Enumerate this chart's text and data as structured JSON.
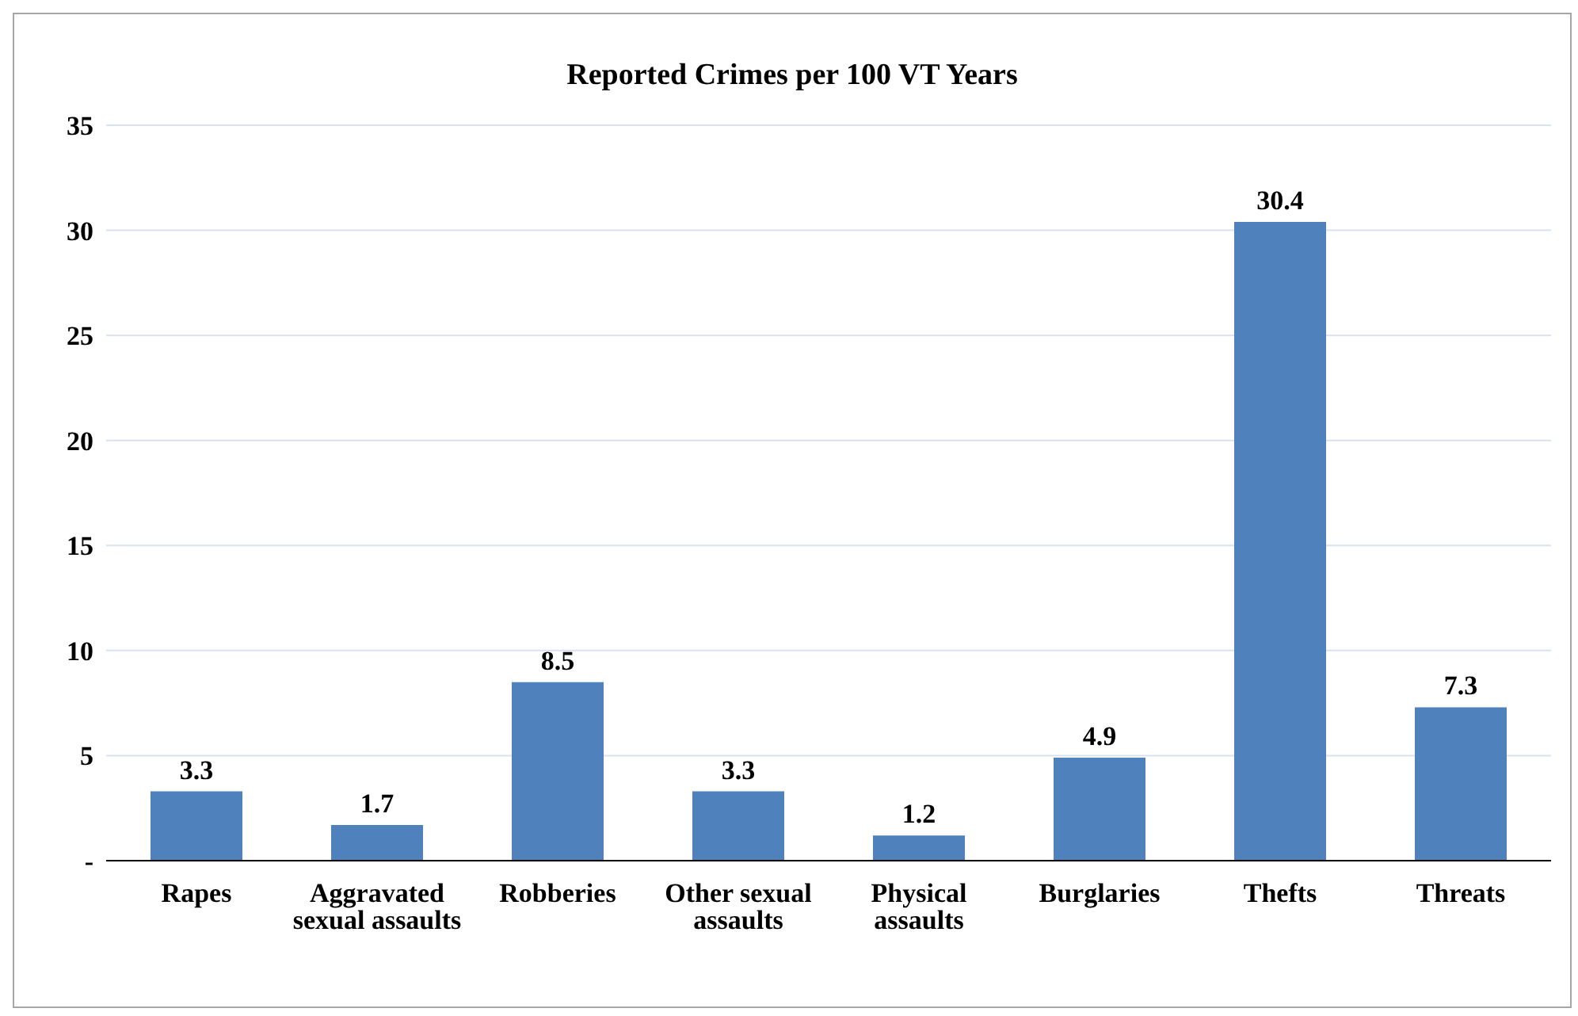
{
  "chart_data": {
    "type": "bar",
    "title": "Reported Crimes  per 100 VT Years",
    "categories": [
      "Rapes",
      "Aggravated sexual assaults",
      "Robberies",
      "Other sexual assaults",
      "Physical assaults",
      "Burglaries",
      "Thefts",
      "Threats"
    ],
    "values": [
      3.3,
      1.7,
      8.5,
      3.3,
      1.2,
      4.9,
      30.4,
      7.3
    ],
    "color": "#4f81bd",
    "ylim": [
      0,
      35
    ],
    "yticks": [
      {
        "value": 0,
        "label": "-"
      },
      5,
      10,
      15,
      20,
      25,
      30,
      35
    ],
    "grid": "y",
    "data_labels": true
  }
}
